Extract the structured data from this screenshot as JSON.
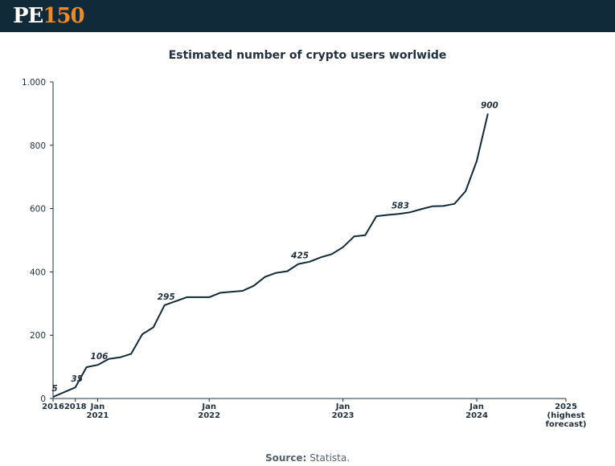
{
  "header": {
    "logo_prefix": "PE",
    "logo_number": "150"
  },
  "source": {
    "label": "Source:",
    "text": "Statista."
  },
  "chart_data": {
    "type": "line",
    "title": "Estimated number of crypto users worlwide",
    "xlabel": "",
    "ylabel": "",
    "ylim": [
      0,
      1000
    ],
    "y_ticks": [
      0,
      200,
      400,
      600,
      800,
      1000
    ],
    "y_tick_labels": [
      "0",
      "200",
      "400",
      "600",
      "800",
      "1.000"
    ],
    "x_tick_labels": [
      {
        "x": 0,
        "lines": [
          "2016"
        ]
      },
      {
        "x": 2,
        "lines": [
          "2018"
        ]
      },
      {
        "x": 4,
        "lines": [
          "Jan",
          "2021"
        ]
      },
      {
        "x": 14,
        "lines": [
          "Jan",
          "2022"
        ]
      },
      {
        "x": 26,
        "lines": [
          "Jan",
          "2023"
        ]
      },
      {
        "x": 38,
        "lines": [
          "Jan",
          "2024"
        ]
      },
      {
        "x": 46,
        "lines": [
          "2025",
          "(highest",
          "forecast)"
        ]
      }
    ],
    "xlim": [
      0,
      46
    ],
    "grid": false,
    "series": [
      {
        "color": "#112a3a",
        "points": [
          [
            0,
            5
          ],
          [
            2,
            35
          ],
          [
            3,
            99
          ],
          [
            4,
            106
          ],
          [
            5,
            125
          ],
          [
            6,
            130
          ],
          [
            7,
            141
          ],
          [
            8,
            203
          ],
          [
            9,
            225
          ],
          [
            10,
            295
          ],
          [
            12,
            320
          ],
          [
            14,
            320
          ],
          [
            15,
            334
          ],
          [
            17,
            340
          ],
          [
            18,
            356
          ],
          [
            19,
            384
          ],
          [
            20,
            397
          ],
          [
            21,
            402
          ],
          [
            22,
            425
          ],
          [
            23,
            432
          ],
          [
            24,
            446
          ],
          [
            25,
            456
          ],
          [
            26,
            478
          ],
          [
            27,
            512
          ],
          [
            28,
            516
          ],
          [
            29,
            576
          ],
          [
            30,
            580
          ],
          [
            31,
            583
          ],
          [
            32,
            588
          ],
          [
            33,
            598
          ],
          [
            34,
            607
          ],
          [
            35,
            608
          ],
          [
            36,
            615
          ],
          [
            37,
            655
          ],
          [
            38,
            750
          ],
          [
            39,
            900
          ]
        ]
      }
    ],
    "data_labels": [
      {
        "x": 0,
        "y": 5,
        "text": "5"
      },
      {
        "x": 2,
        "y": 35,
        "text": "35"
      },
      {
        "x": 4,
        "y": 106,
        "text": "106"
      },
      {
        "x": 10,
        "y": 295,
        "text": "295"
      },
      {
        "x": 22,
        "y": 425,
        "text": "425"
      },
      {
        "x": 31,
        "y": 583,
        "text": "583"
      },
      {
        "x": 39,
        "y": 900,
        "text": "900"
      }
    ]
  }
}
